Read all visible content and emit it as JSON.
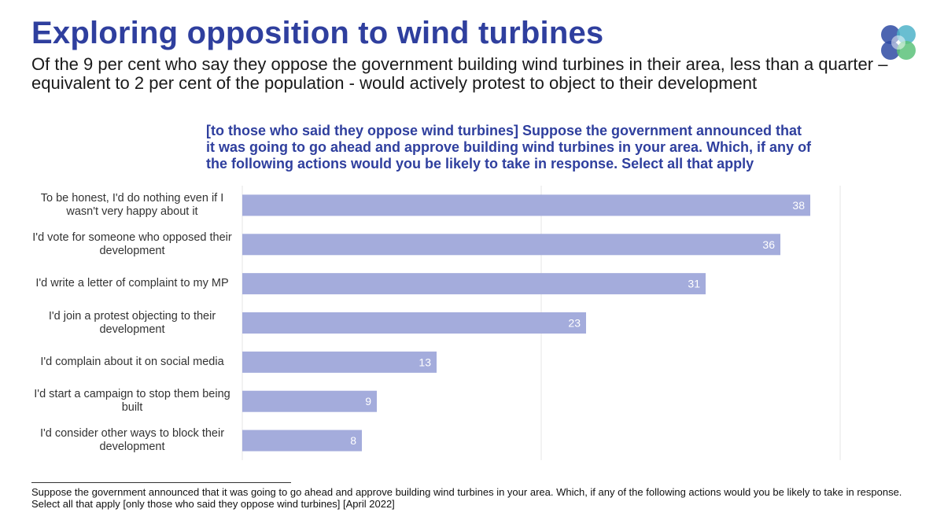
{
  "header": {
    "title": "Exploring opposition to wind turbines",
    "subtitle": "Of the 9 per cent who say they oppose the government building wind turbines in their area, less than a quarter – equivalent to 2 per cent of the population - would actively protest to object to their development"
  },
  "question": "[to those who said they oppose wind turbines] Suppose the government announced that it was going to go ahead and approve building wind turbines in your area. Which, if any of the following actions would you be likely to take in response. Select all that apply",
  "footnote": "Suppose the government announced that it was going to go ahead and approve building wind turbines in your area. Which, if any of the following actions would you be likely to take in response. Select all that apply [only those who said they oppose wind turbines] [April 2022]",
  "logo": {
    "icon": "overlapping-circles-logo",
    "colors": [
      "#2e4aa3",
      "#4fb3c9",
      "#5cc27a"
    ]
  },
  "colors": {
    "title": "#2f3f9e",
    "bar": "#a4acdc",
    "bar_label": "#ffffff",
    "gridline": "#e4e4e4"
  },
  "chart_data": {
    "type": "bar",
    "orientation": "horizontal",
    "categories": [
      "To be honest, I'd do nothing even if I wasn't very happy about it",
      "I'd vote for someone who opposed their development",
      "I'd write a letter of complaint to my MP",
      "I'd join a protest objecting to their development",
      "I'd complain about it on social media",
      "I'd start a campaign to stop them being built",
      "I'd consider other ways to block their development"
    ],
    "values": [
      38,
      36,
      31,
      23,
      13,
      9,
      8
    ],
    "xlim": [
      0,
      40
    ],
    "grid": true,
    "data_labels": true,
    "legend": false
  }
}
